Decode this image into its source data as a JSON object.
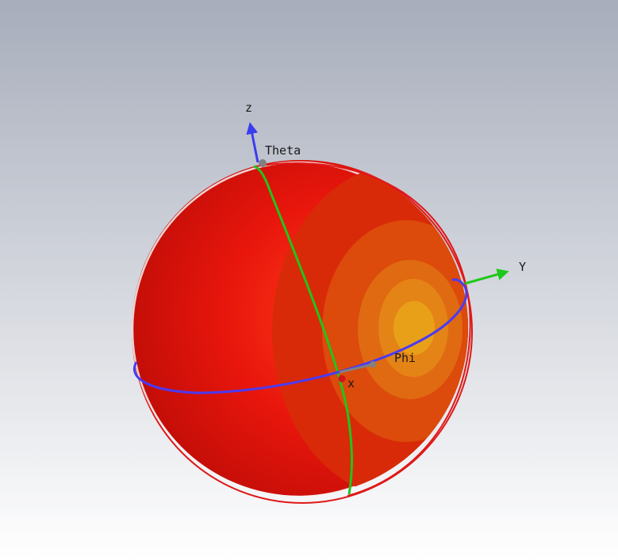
{
  "viewer": {
    "background_top": "#a7adbb",
    "background_bottom": "#ffffff"
  },
  "colors": {
    "sphere_base": "#e8160c",
    "sphere_rim_light": "#f4f4f4",
    "pattern_ring_1": "#d82a08",
    "pattern_ring_2": "#dc4a0c",
    "pattern_ring_3": "#e06a12",
    "pattern_ring_4": "#e58416",
    "pattern_center": "#e8a018",
    "theta_circle": "#22c41a",
    "phi_circle": "#4b3af2",
    "outline_circle": "#e01818",
    "z_axis": "#3a3cf0",
    "y_axis": "#1ec81a",
    "x_axis": "#d8121a",
    "marker": "#808080"
  },
  "axes": {
    "z": "z",
    "y": "Y",
    "x": "x"
  },
  "labels": {
    "theta": "Theta",
    "phi": "Phi"
  }
}
